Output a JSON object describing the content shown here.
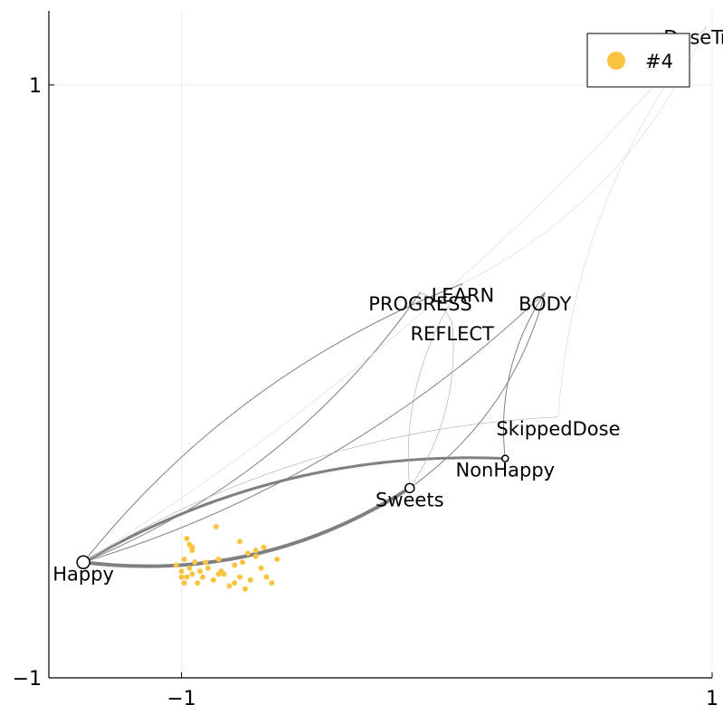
{
  "chart_data": {
    "type": "scatter",
    "title": "",
    "xlabel": "",
    "ylabel": "",
    "xlim": [
      -1.5,
      1.0
    ],
    "ylim": [
      -1.0,
      1.25
    ],
    "xticks": [
      {
        "value": -1,
        "label": "−1"
      },
      {
        "value": 1,
        "label": "1"
      }
    ],
    "yticks": [
      {
        "value": -1,
        "label": "−1"
      },
      {
        "value": 1,
        "label": "1"
      }
    ],
    "grid": true,
    "legend": {
      "position": "top-right",
      "entries": [
        {
          "label": "#4",
          "color": "#f9c440"
        }
      ]
    },
    "nodes": [
      {
        "name": "Happy",
        "x": -1.37,
        "y": -0.61,
        "marker": "large-circle"
      },
      {
        "name": "Sweets",
        "x": -0.14,
        "y": -0.36,
        "marker": "circle"
      },
      {
        "name": "NonHappy",
        "x": 0.22,
        "y": -0.26,
        "marker": "small-circle"
      },
      {
        "name": "SkippedDose",
        "x": 0.42,
        "y": -0.12,
        "marker": "none"
      },
      {
        "name": "PROGRESS",
        "x": -0.1,
        "y": 0.3,
        "marker": "none"
      },
      {
        "name": "LEARN",
        "x": 0.06,
        "y": 0.33,
        "marker": "none"
      },
      {
        "name": "BODY",
        "x": 0.37,
        "y": 0.3,
        "marker": "none"
      },
      {
        "name": "REFLECT",
        "x": 0.02,
        "y": 0.2,
        "marker": "none"
      },
      {
        "name": "DoseTrac",
        "x": 0.98,
        "y": 1.2,
        "marker": "none"
      }
    ],
    "edges": [
      {
        "from": "Happy",
        "to": "Sweets",
        "weight": 4
      },
      {
        "from": "Happy",
        "to": "NonHappy",
        "weight": 3
      },
      {
        "from": "Happy",
        "to": "PROGRESS",
        "weight": 1
      },
      {
        "from": "Happy",
        "to": "LEARN",
        "weight": 1
      },
      {
        "from": "Happy",
        "to": "BODY",
        "weight": 1
      },
      {
        "from": "Happy",
        "to": "SkippedDose",
        "weight": 0.6
      },
      {
        "from": "Happy",
        "to": "DoseTrac",
        "weight": 0.3
      },
      {
        "from": "Sweets",
        "to": "LEARN",
        "weight": 0.6
      },
      {
        "from": "Sweets",
        "to": "REFLECT",
        "weight": 0.6
      },
      {
        "from": "BODY",
        "to": "Sweets",
        "weight": 1
      },
      {
        "from": "BODY",
        "to": "NonHappy",
        "weight": 1
      },
      {
        "from": "PROGRESS",
        "to": "REFLECT",
        "weight": 0.6
      },
      {
        "from": "DoseTrac",
        "to": "SkippedDose",
        "weight": 0.3
      },
      {
        "from": "DoseTrac",
        "to": "LEARN",
        "weight": 0.3
      }
    ],
    "series": [
      {
        "name": "#4",
        "color": "#f9c440",
        "points": [
          [
            -1.02,
            -0.62
          ],
          [
            -1.0,
            -0.64
          ],
          [
            -0.99,
            -0.6
          ],
          [
            -0.98,
            -0.66
          ],
          [
            -0.97,
            -0.63
          ],
          [
            -0.96,
            -0.65
          ],
          [
            -0.95,
            -0.61
          ],
          [
            -0.96,
            -0.57
          ],
          [
            -0.93,
            -0.64
          ],
          [
            -0.92,
            -0.66
          ],
          [
            -0.94,
            -0.68
          ],
          [
            -0.9,
            -0.63
          ],
          [
            -0.88,
            -0.67
          ],
          [
            -0.86,
            -0.6
          ],
          [
            -0.84,
            -0.65
          ],
          [
            -0.82,
            -0.69
          ],
          [
            -0.8,
            -0.62
          ],
          [
            -0.78,
            -0.66
          ],
          [
            -0.76,
            -0.7
          ],
          [
            -0.74,
            -0.67
          ],
          [
            -0.72,
            -0.59
          ],
          [
            -0.7,
            -0.63
          ],
          [
            -0.68,
            -0.66
          ],
          [
            -0.66,
            -0.68
          ],
          [
            -0.64,
            -0.6
          ],
          [
            -0.98,
            -0.53
          ],
          [
            -0.96,
            -0.56
          ],
          [
            -0.87,
            -0.49
          ],
          [
            -0.78,
            -0.54
          ],
          [
            -0.75,
            -0.58
          ],
          [
            -0.72,
            -0.57
          ],
          [
            -0.69,
            -0.56
          ],
          [
            -1.0,
            -0.66
          ],
          [
            -0.99,
            -0.68
          ],
          [
            -0.91,
            -0.61
          ],
          [
            -0.85,
            -0.64
          ],
          [
            -0.8,
            -0.68
          ],
          [
            -0.77,
            -0.61
          ],
          [
            -0.97,
            -0.55
          ],
          [
            -0.86,
            -0.65
          ]
        ]
      }
    ]
  }
}
